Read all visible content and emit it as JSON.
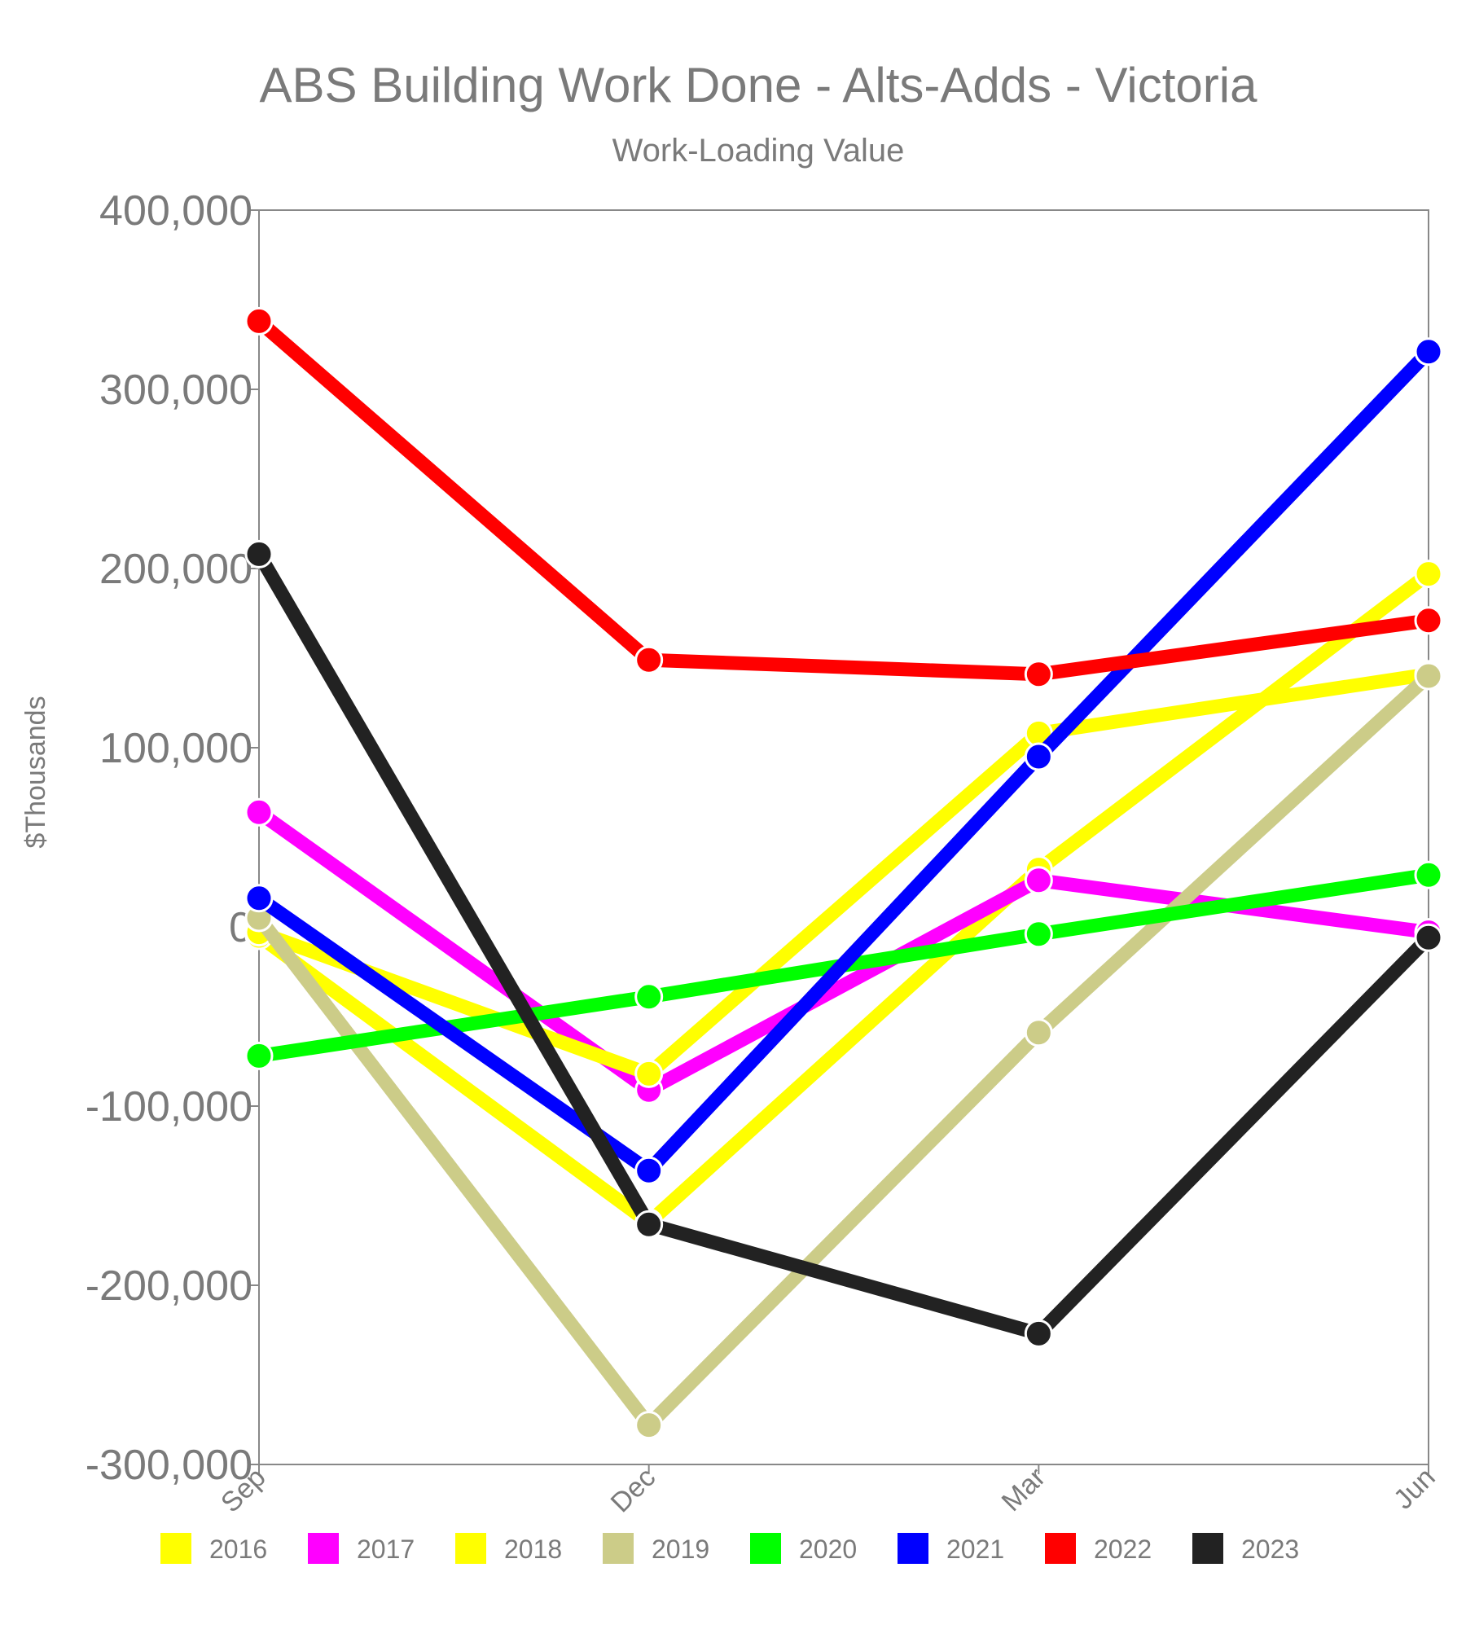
{
  "chart_data": {
    "type": "line",
    "title": "ABS Building Work Done - Alts-Adds - Victoria",
    "subtitle": "Work-Loading Value",
    "xlabel": "",
    "ylabel": "$Thousands",
    "categories": [
      "Sep",
      "Dec",
      "Mar",
      "Jun"
    ],
    "ylim": [
      -300000,
      400000
    ],
    "yticks": [
      400000,
      300000,
      200000,
      100000,
      0,
      -100000,
      -200000,
      -300000
    ],
    "ytick_labels": [
      "400,000",
      "300,000",
      "200,000",
      "100,000",
      "0",
      "-100,000",
      "-200,000",
      "-300,000"
    ],
    "grid": false,
    "legend_position": "bottom",
    "series": [
      {
        "name": "2016",
        "color": "#ffff00",
        "values": [
          -5000,
          -165000,
          32000,
          197000
        ]
      },
      {
        "name": "2017",
        "color": "#ff00ff",
        "values": [
          64000,
          -91000,
          26000,
          -3000
        ]
      },
      {
        "name": "2018",
        "color": "#ffff00",
        "values": [
          -3000,
          -82000,
          108000,
          141000
        ]
      },
      {
        "name": "2019",
        "color": "#cccc88",
        "values": [
          5000,
          -278000,
          -59000,
          140000
        ]
      },
      {
        "name": "2020",
        "color": "#00ff00",
        "values": [
          -72000,
          -39000,
          -4000,
          29000
        ]
      },
      {
        "name": "2021",
        "color": "#0000ff",
        "values": [
          16000,
          -136000,
          95000,
          321000
        ]
      },
      {
        "name": "2022",
        "color": "#ff0000",
        "values": [
          338000,
          149000,
          141000,
          171000
        ]
      },
      {
        "name": "2023",
        "color": "#222222",
        "values": [
          208000,
          -166000,
          -227000,
          -6000
        ]
      }
    ]
  }
}
